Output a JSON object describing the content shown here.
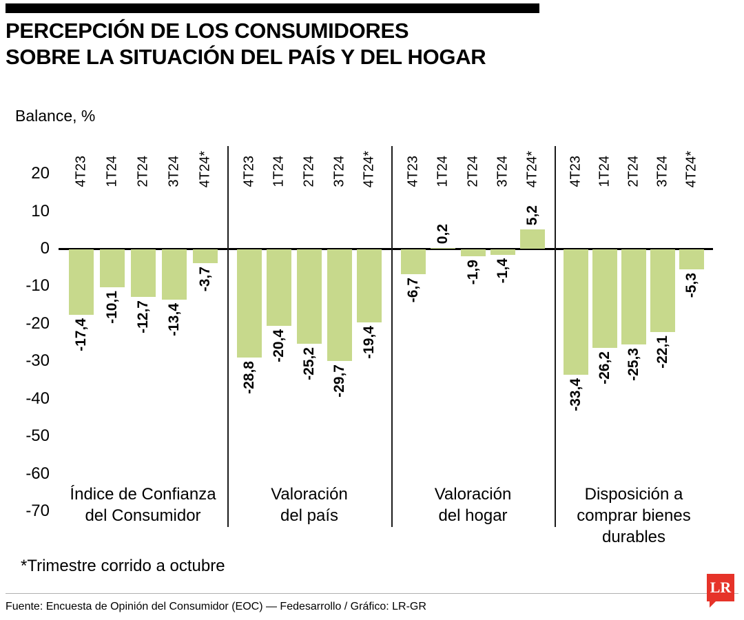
{
  "header": {
    "title_line1": "PERCEPCIÓN DE LOS CONSUMIDORES",
    "title_line2": "SOBRE LA SITUACIÓN DEL PAÍS Y DEL HOGAR",
    "unit_label": "Balance, %"
  },
  "chart_data": {
    "type": "bar",
    "title": "Percepción de los consumidores sobre la situación del país y del hogar",
    "ylabel": "Balance, %",
    "ylim": [
      -70,
      20
    ],
    "y_ticks": [
      20,
      10,
      0,
      -10,
      -20,
      -30,
      -40,
      -50,
      -60,
      -70
    ],
    "grid": false,
    "bar_color": "#c7d98c",
    "value_format": "comma-decimal",
    "categories": [
      "4T23",
      "1T24",
      "2T24",
      "3T24",
      "4T24*"
    ],
    "groups": [
      {
        "label": "Índice de Confianza del Consumidor",
        "label_lines": [
          "Índice de Confianza",
          "del Consumidor"
        ],
        "values": [
          -17.4,
          -10.1,
          -12.7,
          -13.4,
          -3.7
        ]
      },
      {
        "label": "Valoración del país",
        "label_lines": [
          "Valoración",
          "del país"
        ],
        "values": [
          -28.8,
          -20.4,
          -25.2,
          -29.7,
          -19.4
        ]
      },
      {
        "label": "Valoración del hogar",
        "label_lines": [
          "Valoración",
          "del hogar"
        ],
        "values": [
          -6.7,
          0.2,
          -1.9,
          -1.4,
          5.2
        ]
      },
      {
        "label": "Disposición a comprar bienes durables",
        "label_lines": [
          "Disposición a",
          "comprar bienes",
          "durables"
        ],
        "values": [
          -33.4,
          -26.2,
          -25.3,
          -22.1,
          -5.3
        ]
      }
    ]
  },
  "footnote": "*Trimestre corrido a octubre",
  "footer": {
    "source": "Fuente: Encuesta de Opinión del Consumidor (EOC) — Fedesarrollo / Gráfico: LR-GR",
    "logo_text": "LR",
    "logo_color": "#e63329"
  }
}
